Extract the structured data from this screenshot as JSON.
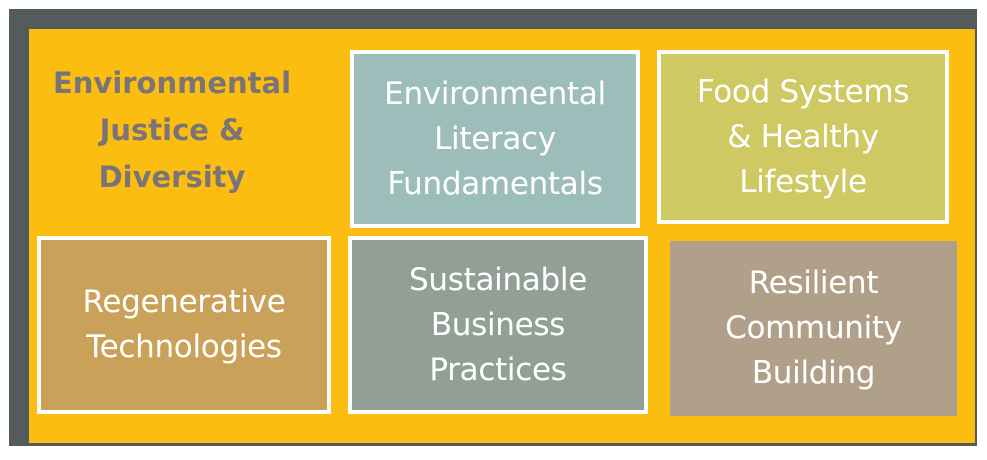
{
  "title": "Environmental\nJustice &\nDiversity",
  "colors": {
    "frame": "#555a5d",
    "background": "#fbbd10",
    "title_text": "#7a7478",
    "tile_text": "#ffffff"
  },
  "tiles": [
    {
      "label": "Environmental\nLiteracy\nFundamentals",
      "color": "#9dbdbb"
    },
    {
      "label": "Food Systems\n& Healthy\nLifestyle",
      "color": "#cfc964"
    },
    {
      "label": "Regenerative\nTechnologies",
      "color": "#caa158"
    },
    {
      "label": "Sustainable\nBusiness\nPractices",
      "color": "#919f96"
    },
    {
      "label": "Resilient\nCommunity\nBuilding",
      "color": "#b1a089"
    }
  ]
}
